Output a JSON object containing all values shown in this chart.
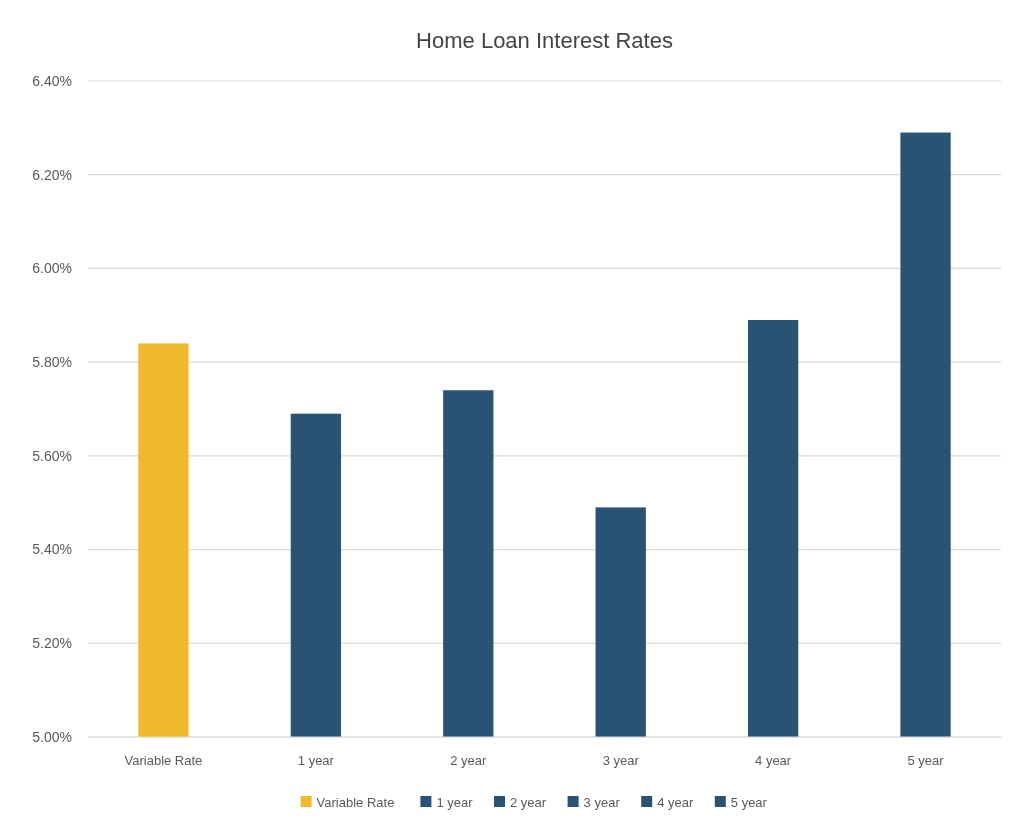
{
  "chart_data": {
    "type": "bar",
    "title": "Home Loan Interest Rates",
    "categories": [
      "Variable Rate",
      "1 year",
      "2 year",
      "3 year",
      "4 year",
      "5 year"
    ],
    "series": [
      {
        "name": "Variable Rate",
        "color": "#f0b92d",
        "values": [
          5.84,
          null,
          null,
          null,
          null,
          null
        ]
      },
      {
        "name": "1 year",
        "color": "#2a5274",
        "values": [
          null,
          5.69,
          null,
          null,
          null,
          null
        ]
      },
      {
        "name": "2 year",
        "color": "#2a5274",
        "values": [
          null,
          null,
          5.74,
          null,
          null,
          null
        ]
      },
      {
        "name": "3 year",
        "color": "#2a5274",
        "values": [
          null,
          null,
          null,
          5.49,
          null,
          null
        ]
      },
      {
        "name": "4 year",
        "color": "#2a5274",
        "values": [
          null,
          null,
          null,
          null,
          5.89,
          null
        ]
      },
      {
        "name": "5 year",
        "color": "#2a5274",
        "values": [
          null,
          null,
          null,
          null,
          null,
          6.29
        ]
      }
    ],
    "ylim": [
      5,
      6.4
    ],
    "yticks": [
      {
        "value": 5,
        "label": "5.00%"
      },
      {
        "value": 5.2,
        "label": "5.20%"
      },
      {
        "value": 5.4,
        "label": "5.40%"
      },
      {
        "value": 5.6,
        "label": "5.60%"
      },
      {
        "value": 5.8,
        "label": "5.80%"
      },
      {
        "value": 6,
        "label": "6.00%"
      },
      {
        "value": 6.2,
        "label": "6.20%"
      },
      {
        "value": 6.4,
        "label": "6.40%"
      }
    ],
    "grid": "y",
    "legend": "bottom"
  }
}
